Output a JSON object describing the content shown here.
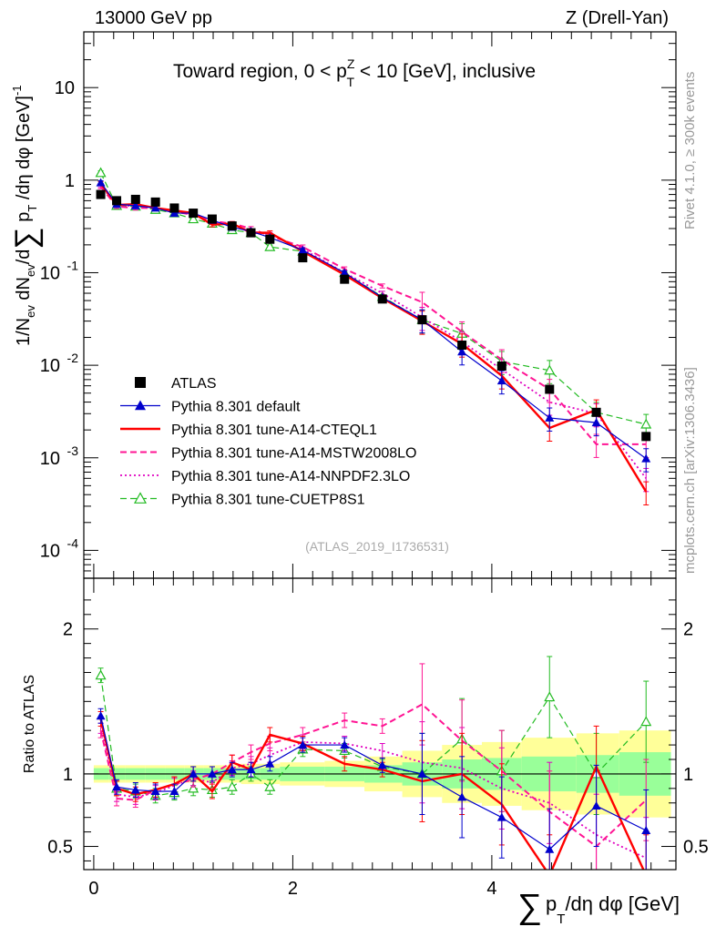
{
  "header": {
    "left": "13000 GeV pp",
    "right": "Z (Drell-Yan)"
  },
  "side_labels": {
    "rivet": "Rivet 4.1.0, ≥ 300k events",
    "mcplots": "mcplots.cern.ch [arXiv:1306.3436]"
  },
  "colors": {
    "atlas": "#000000",
    "default": "#0000cc",
    "cteql1": "#ff0000",
    "mstw": "#ff1493",
    "nnpdf": "#e000c0",
    "cuetp8s1": "#22bb22",
    "band_outer": "#ffff99",
    "band_inner": "#99ff99"
  },
  "chart_data": {
    "type": "line",
    "title": "Toward region, 0 < p_T^Z < 10 [GeV], inclusive",
    "title_parts": {
      "pre": "Toward region, 0 < p",
      "sup": "Z",
      "sub": "T",
      "post": " < 10 [GeV], inclusive"
    },
    "ylabel": "1/N_ev dN_ev/d∑ p_T/dη dφ [GeV]^-1",
    "ylabel_parts": {
      "a": "1/N",
      "a_sub": "ev",
      "b": " dN",
      "b_sub": "ev",
      "c": "/d",
      "sigma": "∑",
      "d": " p",
      "d_sub": "T",
      "e": " /dη dφ  [GeV]",
      "e_sup": "-1"
    },
    "xlabel": "∑ p_T/dη dφ [GeV]",
    "xlabel_parts": {
      "sigma": "∑",
      "p": "p",
      "sub": "T",
      "rest": "/dη dφ [GeV]"
    },
    "ratio_ylabel": "Ratio to ATLAS",
    "reference": "(ATLAS_2019_I1736531)",
    "xlim": [
      -0.1,
      5.85
    ],
    "ylim_log": [
      5e-05,
      40
    ],
    "ratio_ylim": [
      0.34,
      2.35
    ],
    "x_ticks": [
      0,
      2,
      4
    ],
    "y_ticks": [
      {
        "value": 10,
        "label": "10"
      },
      {
        "value": 1,
        "label": "1"
      },
      {
        "value": 0.1,
        "label": "10",
        "exp": "-1"
      },
      {
        "value": 0.01,
        "label": "10",
        "exp": "-2"
      },
      {
        "value": 0.001,
        "label": "10",
        "exp": "-3"
      },
      {
        "value": 0.0001,
        "label": "10",
        "exp": "-4"
      }
    ],
    "ratio_ticks": [
      {
        "value": 0.5,
        "label": "0.5"
      },
      {
        "value": 1,
        "label": "1"
      },
      {
        "value": 2,
        "label": "2"
      }
    ],
    "x": [
      0.07,
      0.23,
      0.42,
      0.62,
      0.81,
      1.0,
      1.19,
      1.39,
      1.58,
      1.77,
      2.1,
      2.52,
      2.9,
      3.3,
      3.7,
      4.1,
      4.58,
      5.05,
      5.55
    ],
    "bin_edges": [
      0.0,
      0.15,
      0.32,
      0.52,
      0.72,
      0.91,
      1.1,
      1.29,
      1.48,
      1.67,
      1.87,
      2.32,
      2.72,
      3.1,
      3.5,
      3.9,
      4.3,
      4.85,
      5.28,
      5.8
    ],
    "band_inner": [
      0.04,
      0.04,
      0.04,
      0.04,
      0.04,
      0.04,
      0.04,
      0.04,
      0.04,
      0.04,
      0.05,
      0.05,
      0.06,
      0.08,
      0.1,
      0.11,
      0.12,
      0.13,
      0.15
    ],
    "band_outer": [
      0.06,
      0.06,
      0.06,
      0.06,
      0.06,
      0.06,
      0.06,
      0.06,
      0.07,
      0.07,
      0.08,
      0.09,
      0.12,
      0.16,
      0.2,
      0.22,
      0.25,
      0.28,
      0.3
    ],
    "series": [
      {
        "name": "ATLAS",
        "key": "atlas",
        "marker": "square",
        "line": "none",
        "values": [
          0.7,
          0.6,
          0.62,
          0.58,
          0.5,
          0.44,
          0.38,
          0.32,
          0.27,
          0.23,
          0.145,
          0.085,
          0.052,
          0.031,
          0.0165,
          0.0098,
          0.0055,
          0.0031,
          0.0017
        ],
        "ratio": [
          1,
          1,
          1,
          1,
          1,
          1,
          1,
          1,
          1,
          1,
          1,
          1,
          1,
          1,
          1,
          1,
          1,
          1,
          1
        ]
      },
      {
        "name": "Pythia 8.301 default",
        "key": "default",
        "marker": "triangle-filled",
        "line": "solid",
        "values": [
          0.94,
          0.55,
          0.53,
          0.5,
          0.44,
          0.44,
          0.37,
          0.31,
          0.28,
          0.24,
          0.175,
          0.1,
          0.054,
          0.031,
          0.014,
          0.0068,
          0.0027,
          0.0024,
          0.00098
        ],
        "ratio": [
          1.4,
          0.91,
          0.89,
          0.88,
          0.88,
          1.0,
          1.0,
          1.03,
          1.03,
          1.07,
          1.2,
          1.2,
          1.06,
          1.0,
          0.84,
          0.7,
          0.48,
          0.78,
          0.61
        ]
      },
      {
        "name": "Pythia 8.301 tune-A14-CTEQL1",
        "key": "cteql1",
        "marker": "none",
        "line": "solid",
        "values": [
          0.92,
          0.54,
          0.55,
          0.5,
          0.47,
          0.44,
          0.33,
          0.34,
          0.27,
          0.27,
          0.17,
          0.095,
          0.053,
          0.03,
          0.017,
          0.0077,
          0.0021,
          0.0033,
          0.00043
        ],
        "ratio": [
          1.38,
          0.9,
          0.86,
          0.89,
          0.93,
          1.0,
          0.88,
          1.08,
          1.03,
          1.27,
          1.21,
          1.07,
          1.03,
          0.95,
          1.0,
          0.79,
          0.3,
          1.05,
          0.3
        ]
      },
      {
        "name": "Pythia 8.301 tune-A14-MSTW2008LO",
        "key": "mstw",
        "marker": "none",
        "line": "dashed",
        "values": [
          0.85,
          0.52,
          0.5,
          0.5,
          0.46,
          0.42,
          0.36,
          0.34,
          0.3,
          0.25,
          0.19,
          0.11,
          0.072,
          0.048,
          0.023,
          0.0115,
          0.0055,
          0.0014,
          0.0014
        ],
        "ratio": [
          1.3,
          0.83,
          0.82,
          0.89,
          0.93,
          0.96,
          1.0,
          1.08,
          1.15,
          1.21,
          1.27,
          1.37,
          1.33,
          1.48,
          1.23,
          1.02,
          0.74,
          0.5,
          0.82
        ]
      },
      {
        "name": "Pythia 8.301 tune-A14-NNPDF2.3LO",
        "key": "nnpdf",
        "marker": "none",
        "line": "dotted",
        "values": [
          0.88,
          0.54,
          0.52,
          0.5,
          0.45,
          0.43,
          0.35,
          0.33,
          0.28,
          0.26,
          0.18,
          0.1,
          0.06,
          0.033,
          0.018,
          0.009,
          0.004,
          0.003,
          0.0006
        ],
        "ratio": [
          1.33,
          0.86,
          0.84,
          0.87,
          0.92,
          0.97,
          0.94,
          1.04,
          1.07,
          1.13,
          1.22,
          1.21,
          1.16,
          1.08,
          1.04,
          0.9,
          0.8,
          0.58,
          0.42
        ]
      },
      {
        "name": "Pythia 8.301 tune-CUETP8S1",
        "key": "cuetp8s1",
        "marker": "triangle-open",
        "line": "dashed",
        "values": [
          1.2,
          0.53,
          0.52,
          0.48,
          0.44,
          0.38,
          0.34,
          0.29,
          0.27,
          0.19,
          0.17,
          0.1,
          0.055,
          0.031,
          0.022,
          0.011,
          0.0088,
          0.0031,
          0.0023
        ],
        "ratio": [
          1.68,
          0.9,
          0.88,
          0.85,
          0.87,
          0.9,
          0.89,
          0.91,
          1.0,
          0.91,
          1.17,
          1.16,
          1.05,
          1.0,
          1.24,
          1.02,
          1.53,
          1.0,
          1.36
        ]
      }
    ]
  }
}
